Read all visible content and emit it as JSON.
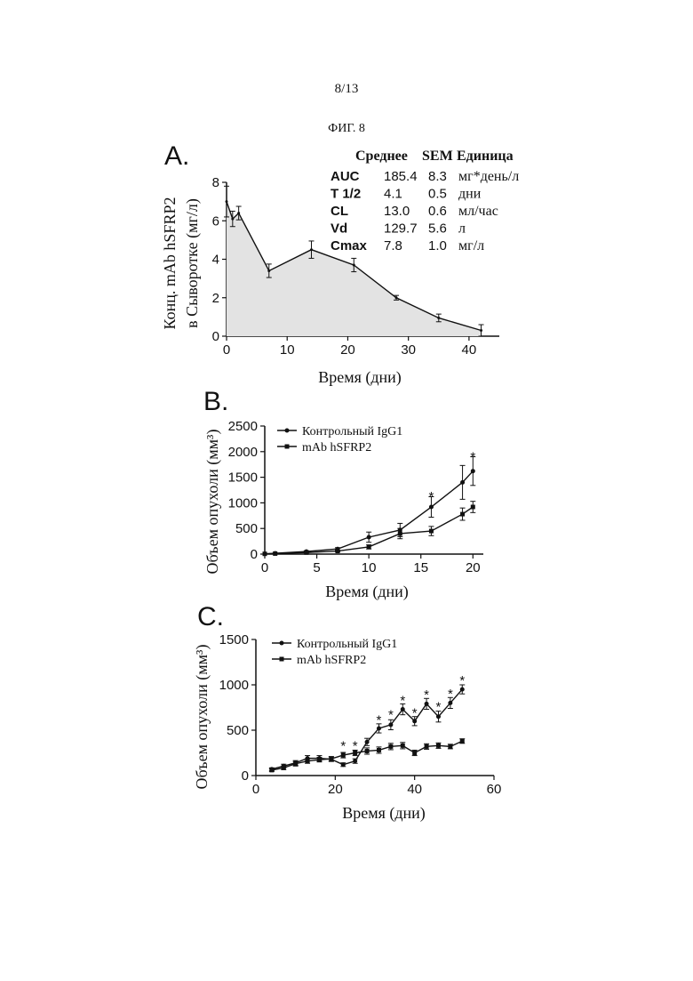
{
  "page_number": "8/13",
  "figure_title": "ФИГ. 8",
  "colors": {
    "area_fill": "#e3e3e3",
    "line": "#111111"
  },
  "chart_data": [
    {
      "panel": "A.",
      "type": "area",
      "xlabel": "Время (дни)",
      "ylabel_lines": [
        "Конц. mAb hSFRP2",
        "в Сыворотке (мг/л)"
      ],
      "xlim": [
        0,
        45
      ],
      "ylim": [
        0,
        8
      ],
      "xticks": [
        0,
        10,
        20,
        30,
        40
      ],
      "yticks": [
        0,
        2,
        4,
        6,
        8
      ],
      "grid": false,
      "x": [
        0,
        1,
        2,
        7,
        14,
        21,
        28,
        35,
        42
      ],
      "y": [
        7.0,
        6.1,
        6.4,
        3.4,
        4.5,
        3.7,
        2.0,
        0.95,
        0.3
      ],
      "err": [
        0.8,
        0.4,
        0.35,
        0.35,
        0.45,
        0.35,
        0.12,
        0.2,
        0.3
      ],
      "stats_table": {
        "headers": [
          "Среднее",
          "SEM",
          "Единица"
        ],
        "rows": [
          {
            "param": "AUC",
            "mean": "185.4",
            "sem": "8.3",
            "unit": "мг*день/л"
          },
          {
            "param": "T 1/2",
            "mean": "4.1",
            "sem": "0.5",
            "unit": "дни"
          },
          {
            "param": "CL",
            "mean": "13.0",
            "sem": "0.6",
            "unit": "мл/час"
          },
          {
            "param": "Vd",
            "mean": "129.7",
            "sem": "5.6",
            "unit": "л"
          },
          {
            "param": "Cmax",
            "mean": "7.8",
            "sem": "1.0",
            "unit": "мг/л"
          }
        ]
      }
    },
    {
      "panel": "B.",
      "type": "line",
      "xlabel": "Время (дни)",
      "ylabel": "Объем опухоли (мм³)",
      "xlim": [
        0,
        21
      ],
      "ylim": [
        0,
        2500
      ],
      "xticks": [
        0,
        5,
        10,
        15,
        20
      ],
      "yticks": [
        0,
        500,
        1000,
        1500,
        2000,
        2500
      ],
      "legend": "top-left",
      "series": [
        {
          "name": "Контрольный IgG1",
          "marker": "circle",
          "x": [
            0,
            1,
            4,
            7,
            10,
            13,
            16,
            19,
            20
          ],
          "y": [
            5,
            15,
            50,
            100,
            330,
            470,
            920,
            1400,
            1620
          ],
          "err": [
            0,
            5,
            15,
            25,
            100,
            130,
            200,
            330,
            280
          ]
        },
        {
          "name": "mAb hSFRP2",
          "marker": "square",
          "x": [
            0,
            1,
            4,
            7,
            10,
            13,
            16,
            19,
            20
          ],
          "y": [
            5,
            10,
            30,
            60,
            140,
            400,
            450,
            780,
            920
          ],
          "err": [
            0,
            5,
            10,
            15,
            40,
            100,
            90,
            120,
            110
          ]
        }
      ],
      "annotations": [
        {
          "x": 16,
          "y": 1180,
          "text": "*"
        },
        {
          "x": 20,
          "y": 1950,
          "text": "*"
        }
      ]
    },
    {
      "panel": "C.",
      "type": "line",
      "xlabel": "Время (дни)",
      "ylabel": "Объем опухоли (мм³)",
      "xlim": [
        0,
        60
      ],
      "ylim": [
        0,
        1500
      ],
      "xticks": [
        0,
        20,
        40,
        60
      ],
      "yticks": [
        0,
        500,
        1000,
        1500
      ],
      "legend": "top-left",
      "series": [
        {
          "name": "Контрольный IgG1",
          "marker": "circle",
          "x": [
            4,
            7,
            10,
            13,
            16,
            19,
            22,
            25,
            28,
            31,
            34,
            37,
            40,
            43,
            46,
            49,
            52
          ],
          "y": [
            70,
            105,
            140,
            190,
            190,
            180,
            120,
            160,
            370,
            520,
            560,
            730,
            600,
            790,
            650,
            800,
            950
          ],
          "err": [
            15,
            20,
            25,
            30,
            30,
            25,
            20,
            25,
            40,
            50,
            55,
            60,
            50,
            60,
            60,
            60,
            50
          ]
        },
        {
          "name": "mAb hSFRP2",
          "marker": "square",
          "x": [
            4,
            7,
            10,
            13,
            16,
            19,
            22,
            25,
            28,
            31,
            34,
            37,
            40,
            43,
            46,
            49,
            52
          ],
          "y": [
            60,
            85,
            130,
            160,
            175,
            185,
            225,
            250,
            270,
            280,
            320,
            330,
            250,
            320,
            330,
            320,
            380
          ],
          "err": [
            15,
            20,
            25,
            25,
            25,
            25,
            30,
            30,
            35,
            35,
            35,
            35,
            30,
            30,
            30,
            25,
            25
          ]
        }
      ],
      "annotations": [
        {
          "x": 22,
          "y": 360,
          "text": "*"
        },
        {
          "x": 25,
          "y": 360,
          "text": "*"
        },
        {
          "x": 31,
          "y": 640,
          "text": "*"
        },
        {
          "x": 34,
          "y": 700,
          "text": "*"
        },
        {
          "x": 37,
          "y": 860,
          "text": "*"
        },
        {
          "x": 40,
          "y": 720,
          "text": "*"
        },
        {
          "x": 43,
          "y": 920,
          "text": "*"
        },
        {
          "x": 46,
          "y": 790,
          "text": "*"
        },
        {
          "x": 49,
          "y": 930,
          "text": "*"
        },
        {
          "x": 52,
          "y": 1080,
          "text": "*"
        }
      ]
    }
  ]
}
